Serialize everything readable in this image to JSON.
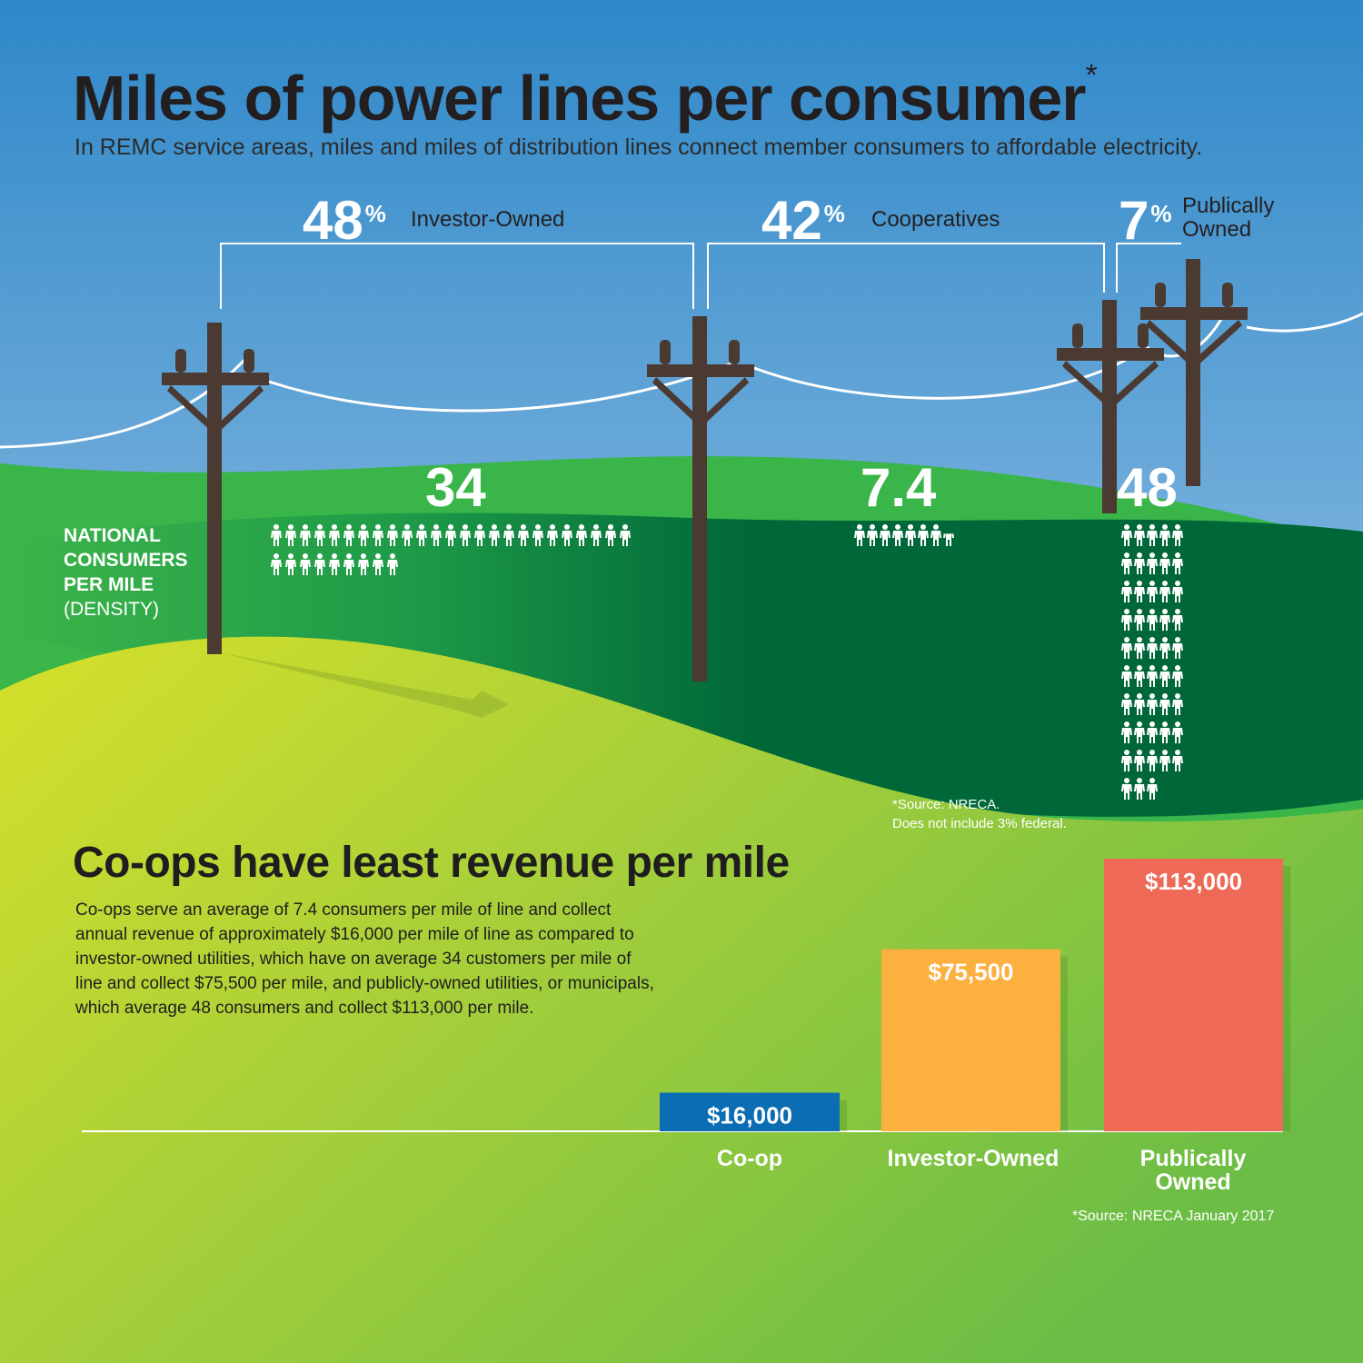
{
  "header": {
    "title": "Miles of power lines per consumer",
    "title_mark": "*",
    "subtitle": "In REMC service areas, miles and miles of distribution lines connect member consumers to affordable electricity."
  },
  "ownership_share": [
    {
      "value": "48",
      "unit": "%",
      "label": "Investor-Owned"
    },
    {
      "value": "42",
      "unit": "%",
      "label": "Cooperatives"
    },
    {
      "value": "7",
      "unit": "%",
      "label": "Publically Owned"
    }
  ],
  "density": {
    "label_line1": "NATIONAL",
    "label_line2": "CONSUMERS",
    "label_line3": "PER MILE",
    "label_line4": "(DENSITY)",
    "items": [
      {
        "value": "34",
        "consumers": 34
      },
      {
        "value": "7.4",
        "consumers": 7.4
      },
      {
        "value": "48",
        "consumers": 48
      }
    ]
  },
  "source_note": {
    "line1": "*Source: NRECA.",
    "line2": "Does not include 3% federal."
  },
  "revenue": {
    "title": "Co-ops have least revenue per mile",
    "body": "Co-ops serve an average of 7.4 consumers per mile of line and collect annual revenue of approximately $16,000 per mile of line as compared to investor-owned utilities, which have on average 34 customers per mile of line and collect $75,500 per mile, and publicly-owned utilities, or municipals, which average 48 consumers and collect $113,000 per mile.",
    "source": "*Source: NRECA January 2017"
  },
  "chart_data": {
    "type": "bar",
    "categories": [
      "Co-op",
      "Investor-Owned",
      "Publically Owned"
    ],
    "values": [
      16000,
      75500,
      113000
    ],
    "value_labels": [
      "$16,000",
      "$75,500",
      "$113,000"
    ],
    "colors": [
      "#0b6db3",
      "#fbb040",
      "#ee6a56"
    ],
    "ylim": [
      0,
      113000
    ]
  }
}
